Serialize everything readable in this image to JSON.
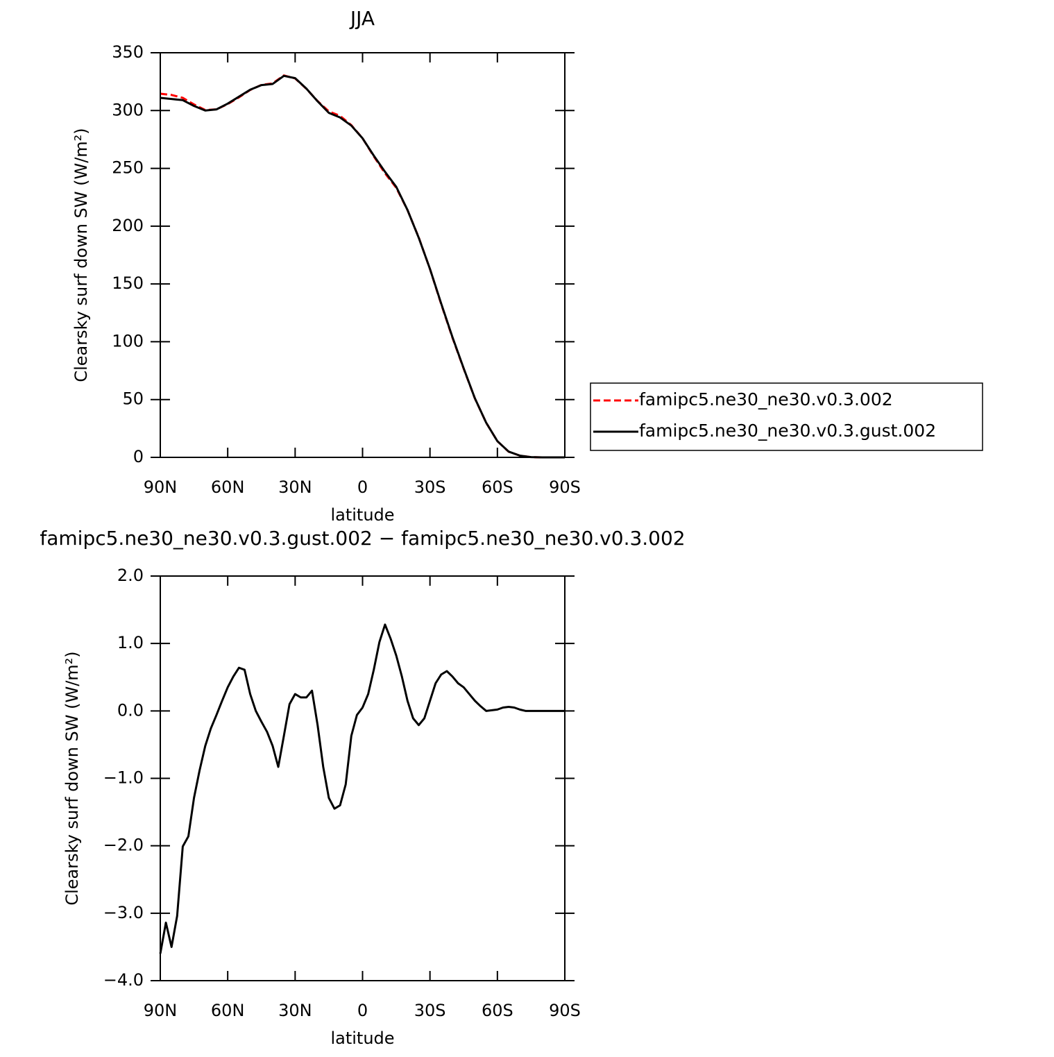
{
  "chart_data": [
    {
      "type": "line",
      "title": "JJA",
      "xlabel": "latitude",
      "ylabel": "Clearsky surf down SW (W/m²)",
      "x": [
        90,
        85,
        80,
        75,
        70,
        65,
        60,
        55,
        50,
        45,
        40,
        35,
        30,
        25,
        20,
        15,
        10,
        5,
        0,
        -5,
        -10,
        -15,
        -20,
        -25,
        -30,
        -35,
        -40,
        -45,
        -50,
        -55,
        -60,
        -65,
        -70,
        -75,
        -80,
        -85,
        -90
      ],
      "xlim": [
        90,
        -90
      ],
      "xticks": [
        {
          "value": 90,
          "label": "90N"
        },
        {
          "value": 60,
          "label": "60N"
        },
        {
          "value": 30,
          "label": "30N"
        },
        0,
        {
          "value": -30,
          "label": "30S"
        },
        {
          "value": -60,
          "label": "60S"
        },
        {
          "value": -90,
          "label": "90S"
        }
      ],
      "ylim": [
        0,
        350
      ],
      "yticks": [
        0,
        50,
        100,
        150,
        200,
        250,
        300,
        350
      ],
      "series": [
        {
          "name": "famipc5.ne30_ne30.v0.3.002",
          "color": "#ff0000",
          "dash": "dashed",
          "values": [
            314.6,
            313.5,
            311,
            305.3,
            300.5,
            301,
            305.6,
            311.4,
            317.8,
            322.2,
            323.5,
            330.4,
            327.8,
            318.8,
            308.2,
            299.3,
            295.4,
            287.4,
            276,
            260.4,
            245.7,
            233.2,
            213.9,
            190.2,
            162.9,
            132.5,
            103.5,
            76.7,
            50.9,
            30,
            14,
            4.9,
            1.5,
            0.2,
            0,
            0,
            0
          ]
        },
        {
          "name": "famipc5.ne30_ne30.v0.3.gust.002",
          "color": "#000000",
          "dash": "solid",
          "values": [
            311,
            310,
            309,
            304,
            300,
            301,
            306,
            312,
            318,
            322,
            323,
            330,
            328,
            319,
            308,
            298,
            294,
            287,
            276,
            261,
            247,
            234,
            214,
            190,
            163,
            133,
            104,
            77,
            51,
            30,
            14,
            5,
            1.5,
            0.2,
            0,
            0,
            0
          ]
        }
      ]
    },
    {
      "type": "line",
      "title": "famipc5.ne30_ne30.v0.3.gust.002 − famipc5.ne30_ne30.v0.3.002",
      "xlabel": "latitude",
      "ylabel": "Clearsky surf down SW (W/m²)",
      "x": [
        90,
        87.5,
        85,
        82.5,
        80,
        77.5,
        75,
        72.5,
        70,
        67.5,
        65,
        62.5,
        60,
        57.5,
        55,
        52.5,
        50,
        47.5,
        45,
        42.5,
        40,
        37.5,
        35,
        32.5,
        30,
        27.5,
        25,
        22.5,
        20,
        17.5,
        15,
        12.5,
        10,
        7.5,
        5,
        2.5,
        0,
        -2.5,
        -5,
        -7.5,
        -10,
        -12.5,
        -15,
        -17.5,
        -20,
        -22.5,
        -25,
        -27.5,
        -30,
        -32.5,
        -35,
        -37.5,
        -40,
        -42.5,
        -45,
        -47.5,
        -50,
        -52.5,
        -55,
        -57.5,
        -60,
        -62.5,
        -65,
        -67.5,
        -70,
        -72.5,
        -75,
        -77.5,
        -80,
        -82.5,
        -85,
        -87.5,
        -90
      ],
      "xlim": [
        90,
        -90
      ],
      "xticks": [
        {
          "value": 90,
          "label": "90N"
        },
        {
          "value": 60,
          "label": "60N"
        },
        {
          "value": 30,
          "label": "30N"
        },
        0,
        {
          "value": -30,
          "label": "30S"
        },
        {
          "value": -60,
          "label": "60S"
        },
        {
          "value": -90,
          "label": "90S"
        }
      ],
      "ylim": [
        -4,
        2
      ],
      "yticks": [
        {
          "value": -4,
          "label": "−4.0"
        },
        {
          "value": -3,
          "label": "−3.0"
        },
        {
          "value": -2,
          "label": "−2.0"
        },
        {
          "value": -1,
          "label": "−1.0"
        },
        {
          "value": 0,
          "label": "0.0"
        },
        {
          "value": 1,
          "label": "1.0"
        },
        {
          "value": 2,
          "label": "2.0"
        }
      ],
      "color": "#000000",
      "values": [
        -3.6,
        -3.14,
        -3.5,
        -3.04,
        -2.01,
        -1.86,
        -1.29,
        -0.88,
        -0.52,
        -0.26,
        -0.06,
        0.15,
        0.35,
        0.51,
        0.64,
        0.61,
        0.25,
        0,
        -0.16,
        -0.31,
        -0.52,
        -0.83,
        -0.37,
        0.1,
        0.25,
        0.2,
        0.2,
        0.3,
        -0.21,
        -0.83,
        -1.29,
        -1.45,
        -1.4,
        -1.09,
        -0.37,
        -0.06,
        0.05,
        0.25,
        0.61,
        1.02,
        1.28,
        1.07,
        0.82,
        0.51,
        0.15,
        -0.11,
        -0.21,
        -0.11,
        0.15,
        0.41,
        0.54,
        0.59,
        0.51,
        0.41,
        0.35,
        0.25,
        0.15,
        0.07,
        0,
        0.01,
        0.02,
        0.05,
        0.06,
        0.05,
        0.02,
        0,
        0,
        0,
        0,
        0,
        0,
        0,
        0
      ]
    }
  ]
}
